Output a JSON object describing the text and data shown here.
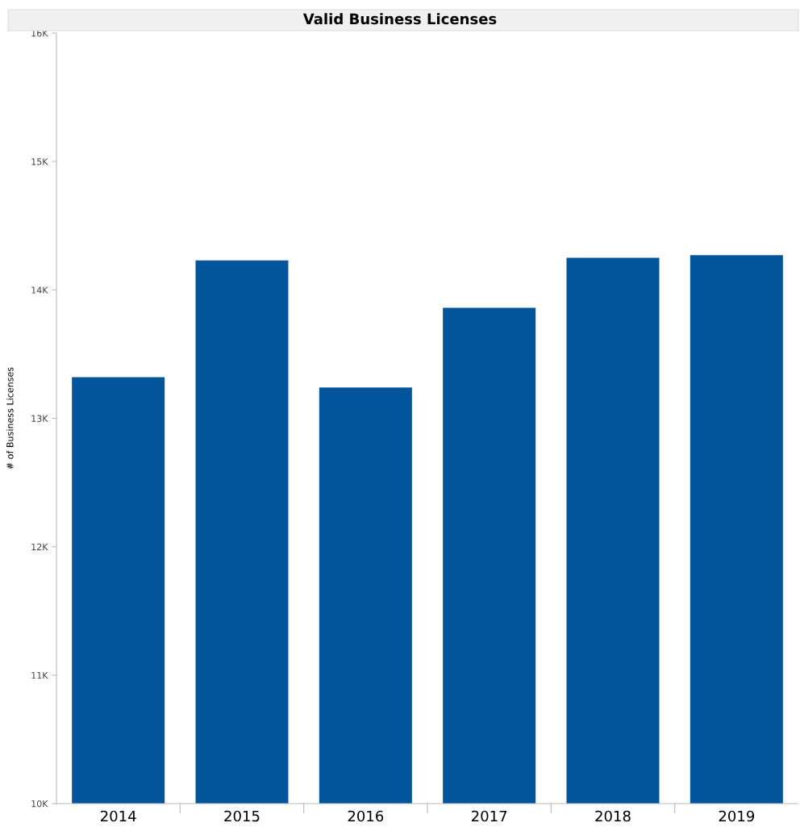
{
  "chart_data": {
    "type": "bar",
    "title": "Valid Business Licenses",
    "ylabel": "# of Business Licenses",
    "categories": [
      "2014",
      "2015",
      "2016",
      "2017",
      "2018",
      "2019"
    ],
    "values": [
      13320,
      14230,
      13240,
      13860,
      14250,
      14270
    ],
    "color": "#02559a",
    "ylim": [
      10000,
      16000
    ],
    "yticks": [
      {
        "value": 10000,
        "label": "10K"
      },
      {
        "value": 11000,
        "label": "11K"
      },
      {
        "value": 12000,
        "label": "12K"
      },
      {
        "value": 13000,
        "label": "13K"
      },
      {
        "value": 14000,
        "label": "14K"
      },
      {
        "value": 15000,
        "label": "15K"
      },
      {
        "value": 16000,
        "label": "16K"
      }
    ],
    "grid": false,
    "legend": false
  }
}
